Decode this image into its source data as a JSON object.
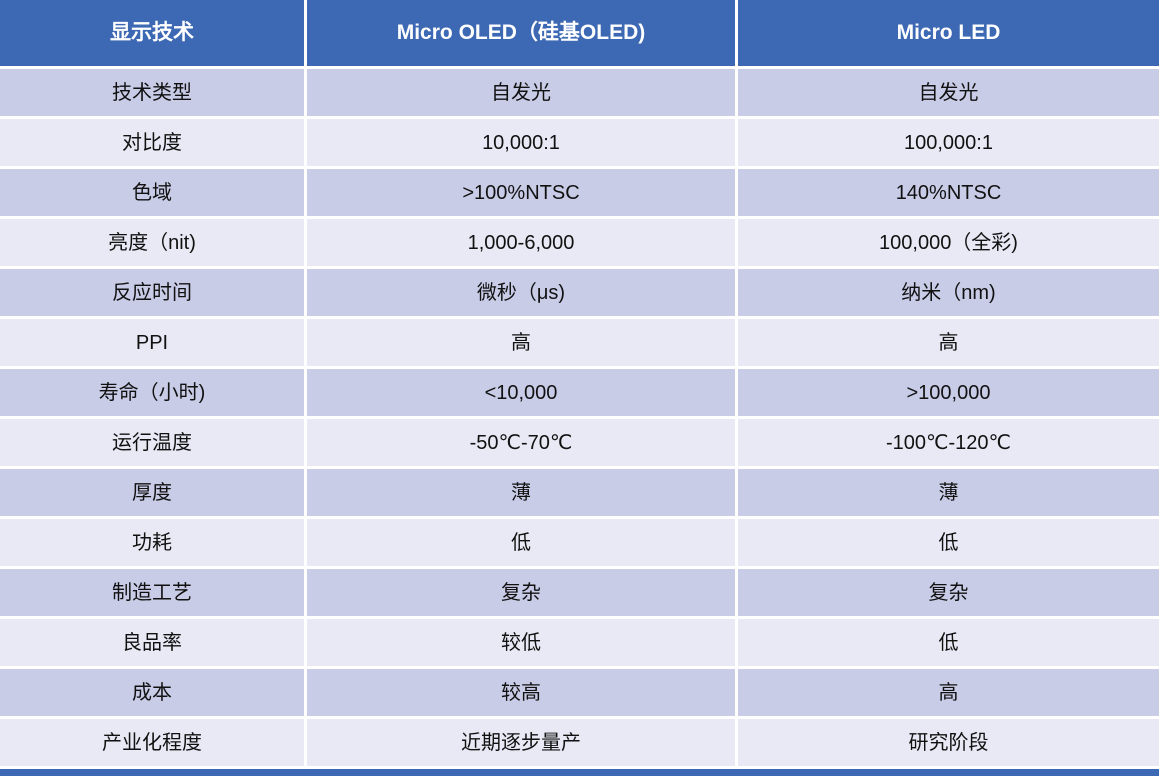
{
  "colors": {
    "accent_blue": "#3d68b3",
    "band_dark": "#c9cce7",
    "band_light": "#e8e9f4",
    "text_dark": "#111111",
    "header_text": "#ffffff"
  },
  "chart_data": {
    "type": "table",
    "title": "",
    "columns": [
      "显示技术",
      "Micro OLED（硅基OLED)",
      "Micro LED"
    ],
    "rows": [
      [
        "技术类型",
        "自发光",
        "自发光"
      ],
      [
        "对比度",
        "10,000:1",
        "100,000:1"
      ],
      [
        "色域",
        ">100%NTSC",
        "140%NTSC"
      ],
      [
        "亮度（nit)",
        "1,000-6,000",
        "100,000（全彩)"
      ],
      [
        "反应时间",
        "微秒（μs)",
        "纳米（nm)"
      ],
      [
        "PPI",
        "高",
        "高"
      ],
      [
        "寿命（小时)",
        "<10,000",
        ">100,000"
      ],
      [
        "运行温度",
        "-50℃-70℃",
        "-100℃-120℃"
      ],
      [
        "厚度",
        "薄",
        "薄"
      ],
      [
        "功耗",
        "低",
        "低"
      ],
      [
        "制造工艺",
        "复杂",
        "复杂"
      ],
      [
        "良品率",
        "较低",
        "低"
      ],
      [
        "成本",
        "较高",
        "高"
      ],
      [
        "产业化程度",
        "近期逐步量产",
        "研究阶段"
      ]
    ]
  }
}
